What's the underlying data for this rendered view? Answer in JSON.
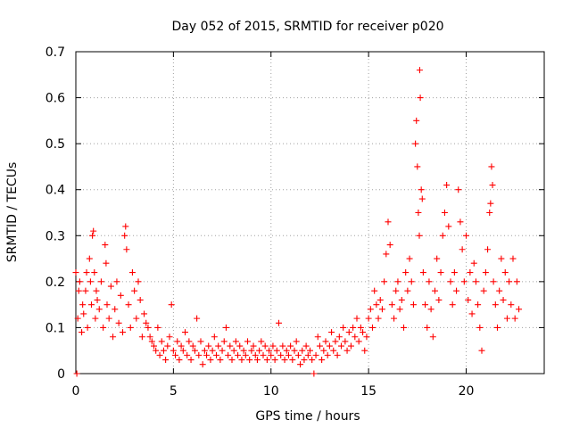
{
  "chart_data": {
    "type": "scatter",
    "title": "Day 052 of 2015, SRMTID for receiver p020",
    "xlabel": "GPS time / hours",
    "ylabel": "SRMTID / TECUs",
    "xlim": [
      0,
      24
    ],
    "ylim": [
      0,
      0.7
    ],
    "xticks": [
      0,
      5,
      10,
      15,
      20
    ],
    "yticks": [
      0,
      0.1,
      0.2,
      0.3,
      0.4,
      0.5,
      0.6,
      0.7
    ],
    "xtick_labels": [
      "0",
      "5",
      "10",
      "15",
      "20"
    ],
    "ytick_labels": [
      "0",
      "0.1",
      "0.2",
      "0.3",
      "0.4",
      "0.5",
      "0.6",
      "0.7"
    ],
    "grid": true,
    "marker": "+",
    "color": "#ff0000",
    "series": [
      {
        "name": "p020",
        "points": [
          [
            0.0,
            0.22
          ],
          [
            0.05,
            0.0
          ],
          [
            0.1,
            0.12
          ],
          [
            0.15,
            0.18
          ],
          [
            0.2,
            0.2
          ],
          [
            0.3,
            0.09
          ],
          [
            0.35,
            0.15
          ],
          [
            0.4,
            0.13
          ],
          [
            0.5,
            0.18
          ],
          [
            0.55,
            0.22
          ],
          [
            0.6,
            0.1
          ],
          [
            0.7,
            0.25
          ],
          [
            0.75,
            0.2
          ],
          [
            0.8,
            0.15
          ],
          [
            0.85,
            0.3
          ],
          [
            0.9,
            0.31
          ],
          [
            0.95,
            0.22
          ],
          [
            1.0,
            0.12
          ],
          [
            1.05,
            0.18
          ],
          [
            1.1,
            0.16
          ],
          [
            1.2,
            0.14
          ],
          [
            1.3,
            0.2
          ],
          [
            1.4,
            0.1
          ],
          [
            1.5,
            0.28
          ],
          [
            1.55,
            0.24
          ],
          [
            1.6,
            0.15
          ],
          [
            1.7,
            0.12
          ],
          [
            1.8,
            0.19
          ],
          [
            1.9,
            0.08
          ],
          [
            2.0,
            0.14
          ],
          [
            2.1,
            0.2
          ],
          [
            2.2,
            0.11
          ],
          [
            2.3,
            0.17
          ],
          [
            2.4,
            0.09
          ],
          [
            2.5,
            0.3
          ],
          [
            2.55,
            0.32
          ],
          [
            2.6,
            0.27
          ],
          [
            2.7,
            0.15
          ],
          [
            2.8,
            0.1
          ],
          [
            2.9,
            0.22
          ],
          [
            3.0,
            0.18
          ],
          [
            3.1,
            0.12
          ],
          [
            3.2,
            0.2
          ],
          [
            3.3,
            0.16
          ],
          [
            3.4,
            0.08
          ],
          [
            3.5,
            0.13
          ],
          [
            3.6,
            0.11
          ],
          [
            3.7,
            0.1
          ],
          [
            3.8,
            0.08
          ],
          [
            3.9,
            0.07
          ],
          [
            4.0,
            0.06
          ],
          [
            4.1,
            0.05
          ],
          [
            4.2,
            0.1
          ],
          [
            4.3,
            0.04
          ],
          [
            4.4,
            0.07
          ],
          [
            4.5,
            0.05
          ],
          [
            4.6,
            0.03
          ],
          [
            4.7,
            0.06
          ],
          [
            4.8,
            0.08
          ],
          [
            4.9,
            0.15
          ],
          [
            5.0,
            0.05
          ],
          [
            5.1,
            0.04
          ],
          [
            5.2,
            0.07
          ],
          [
            5.3,
            0.03
          ],
          [
            5.4,
            0.06
          ],
          [
            5.5,
            0.05
          ],
          [
            5.6,
            0.09
          ],
          [
            5.7,
            0.04
          ],
          [
            5.8,
            0.07
          ],
          [
            5.9,
            0.03
          ],
          [
            6.0,
            0.06
          ],
          [
            6.1,
            0.05
          ],
          [
            6.2,
            0.12
          ],
          [
            6.3,
            0.04
          ],
          [
            6.4,
            0.07
          ],
          [
            6.5,
            0.02
          ],
          [
            6.6,
            0.05
          ],
          [
            6.7,
            0.04
          ],
          [
            6.8,
            0.06
          ],
          [
            6.9,
            0.03
          ],
          [
            7.0,
            0.05
          ],
          [
            7.1,
            0.08
          ],
          [
            7.2,
            0.04
          ],
          [
            7.3,
            0.06
          ],
          [
            7.4,
            0.03
          ],
          [
            7.5,
            0.05
          ],
          [
            7.6,
            0.07
          ],
          [
            7.7,
            0.1
          ],
          [
            7.8,
            0.04
          ],
          [
            7.9,
            0.06
          ],
          [
            8.0,
            0.03
          ],
          [
            8.1,
            0.05
          ],
          [
            8.2,
            0.07
          ],
          [
            8.3,
            0.04
          ],
          [
            8.4,
            0.06
          ],
          [
            8.5,
            0.03
          ],
          [
            8.6,
            0.05
          ],
          [
            8.7,
            0.04
          ],
          [
            8.8,
            0.07
          ],
          [
            8.9,
            0.03
          ],
          [
            9.0,
            0.05
          ],
          [
            9.1,
            0.06
          ],
          [
            9.2,
            0.04
          ],
          [
            9.3,
            0.03
          ],
          [
            9.4,
            0.05
          ],
          [
            9.5,
            0.07
          ],
          [
            9.6,
            0.04
          ],
          [
            9.7,
            0.06
          ],
          [
            9.8,
            0.03
          ],
          [
            9.9,
            0.05
          ],
          [
            10.0,
            0.04
          ],
          [
            10.1,
            0.06
          ],
          [
            10.2,
            0.03
          ],
          [
            10.3,
            0.05
          ],
          [
            10.4,
            0.11
          ],
          [
            10.5,
            0.04
          ],
          [
            10.6,
            0.06
          ],
          [
            10.7,
            0.03
          ],
          [
            10.8,
            0.05
          ],
          [
            10.9,
            0.04
          ],
          [
            11.0,
            0.06
          ],
          [
            11.1,
            0.03
          ],
          [
            11.2,
            0.05
          ],
          [
            11.3,
            0.07
          ],
          [
            11.4,
            0.04
          ],
          [
            11.5,
            0.02
          ],
          [
            11.6,
            0.05
          ],
          [
            11.7,
            0.03
          ],
          [
            11.8,
            0.06
          ],
          [
            11.9,
            0.04
          ],
          [
            12.0,
            0.05
          ],
          [
            12.1,
            0.03
          ],
          [
            12.2,
            0.0
          ],
          [
            12.3,
            0.04
          ],
          [
            12.4,
            0.08
          ],
          [
            12.5,
            0.06
          ],
          [
            12.6,
            0.03
          ],
          [
            12.7,
            0.05
          ],
          [
            12.8,
            0.07
          ],
          [
            12.9,
            0.04
          ],
          [
            13.0,
            0.06
          ],
          [
            13.1,
            0.09
          ],
          [
            13.2,
            0.05
          ],
          [
            13.3,
            0.07
          ],
          [
            13.4,
            0.04
          ],
          [
            13.5,
            0.08
          ],
          [
            13.6,
            0.06
          ],
          [
            13.7,
            0.1
          ],
          [
            13.8,
            0.07
          ],
          [
            13.9,
            0.05
          ],
          [
            14.0,
            0.09
          ],
          [
            14.1,
            0.06
          ],
          [
            14.2,
            0.1
          ],
          [
            14.3,
            0.08
          ],
          [
            14.4,
            0.12
          ],
          [
            14.5,
            0.07
          ],
          [
            14.6,
            0.1
          ],
          [
            14.7,
            0.09
          ],
          [
            14.8,
            0.05
          ],
          [
            14.9,
            0.08
          ],
          [
            15.0,
            0.12
          ],
          [
            15.1,
            0.14
          ],
          [
            15.2,
            0.1
          ],
          [
            15.3,
            0.18
          ],
          [
            15.4,
            0.15
          ],
          [
            15.5,
            0.12
          ],
          [
            15.6,
            0.16
          ],
          [
            15.7,
            0.14
          ],
          [
            15.8,
            0.2
          ],
          [
            15.9,
            0.26
          ],
          [
            16.0,
            0.33
          ],
          [
            16.1,
            0.28
          ],
          [
            16.2,
            0.15
          ],
          [
            16.3,
            0.12
          ],
          [
            16.4,
            0.18
          ],
          [
            16.5,
            0.2
          ],
          [
            16.6,
            0.14
          ],
          [
            16.7,
            0.16
          ],
          [
            16.8,
            0.1
          ],
          [
            16.9,
            0.22
          ],
          [
            17.0,
            0.18
          ],
          [
            17.1,
            0.25
          ],
          [
            17.2,
            0.2
          ],
          [
            17.3,
            0.15
          ],
          [
            17.4,
            0.5
          ],
          [
            17.45,
            0.55
          ],
          [
            17.5,
            0.45
          ],
          [
            17.55,
            0.35
          ],
          [
            17.6,
            0.3
          ],
          [
            17.62,
            0.66
          ],
          [
            17.65,
            0.6
          ],
          [
            17.7,
            0.4
          ],
          [
            17.75,
            0.38
          ],
          [
            17.8,
            0.22
          ],
          [
            17.9,
            0.15
          ],
          [
            18.0,
            0.1
          ],
          [
            18.1,
            0.2
          ],
          [
            18.2,
            0.14
          ],
          [
            18.3,
            0.08
          ],
          [
            18.4,
            0.18
          ],
          [
            18.5,
            0.25
          ],
          [
            18.6,
            0.16
          ],
          [
            18.7,
            0.22
          ],
          [
            18.8,
            0.3
          ],
          [
            18.9,
            0.35
          ],
          [
            19.0,
            0.41
          ],
          [
            19.1,
            0.32
          ],
          [
            19.2,
            0.2
          ],
          [
            19.3,
            0.15
          ],
          [
            19.4,
            0.22
          ],
          [
            19.5,
            0.18
          ],
          [
            19.6,
            0.4
          ],
          [
            19.7,
            0.33
          ],
          [
            19.8,
            0.27
          ],
          [
            19.9,
            0.2
          ],
          [
            20.0,
            0.3
          ],
          [
            20.1,
            0.16
          ],
          [
            20.2,
            0.22
          ],
          [
            20.3,
            0.13
          ],
          [
            20.4,
            0.24
          ],
          [
            20.5,
            0.2
          ],
          [
            20.6,
            0.15
          ],
          [
            20.7,
            0.1
          ],
          [
            20.8,
            0.05
          ],
          [
            20.9,
            0.18
          ],
          [
            21.0,
            0.22
          ],
          [
            21.1,
            0.27
          ],
          [
            21.2,
            0.35
          ],
          [
            21.25,
            0.37
          ],
          [
            21.3,
            0.45
          ],
          [
            21.35,
            0.41
          ],
          [
            21.4,
            0.2
          ],
          [
            21.5,
            0.15
          ],
          [
            21.6,
            0.1
          ],
          [
            21.7,
            0.18
          ],
          [
            21.8,
            0.25
          ],
          [
            21.9,
            0.16
          ],
          [
            22.0,
            0.22
          ],
          [
            22.1,
            0.12
          ],
          [
            22.2,
            0.2
          ],
          [
            22.3,
            0.15
          ],
          [
            22.4,
            0.25
          ],
          [
            22.5,
            0.12
          ],
          [
            22.6,
            0.2
          ],
          [
            22.7,
            0.14
          ]
        ]
      }
    ]
  }
}
